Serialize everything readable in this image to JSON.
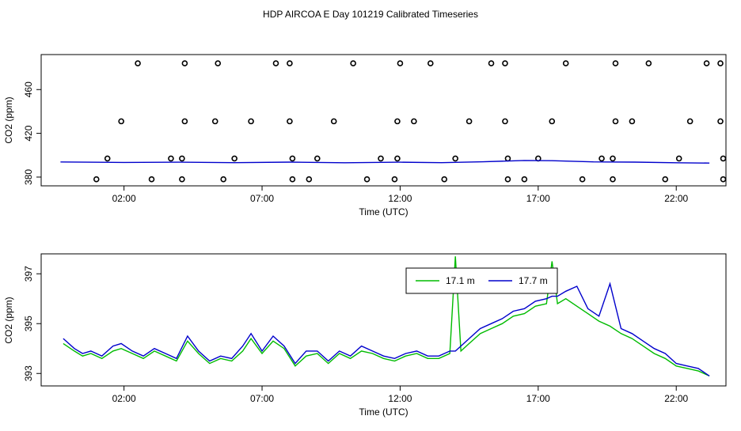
{
  "title": "HDP AIRCOA E  Day 101219  Calibrated Timeseries",
  "chart_data": [
    {
      "type": "scatter",
      "xlabel": "Time (UTC)",
      "ylabel": "CO2 (ppm)",
      "xlim": [
        -1.0,
        23.8
      ],
      "ylim": [
        372,
        492
      ],
      "xticks": [
        {
          "value": 2,
          "label": "02:00"
        },
        {
          "value": 7,
          "label": "07:00"
        },
        {
          "value": 12,
          "label": "12:00"
        },
        {
          "value": 17,
          "label": "17:00"
        },
        {
          "value": 22,
          "label": "22:00"
        }
      ],
      "yticks": [
        {
          "value": 380,
          "label": "380"
        },
        {
          "value": 420,
          "label": "420"
        },
        {
          "value": 460,
          "label": "460"
        }
      ],
      "grid": false,
      "series": [
        {
          "color": "#000000",
          "marker": "circle",
          "points": [
            [
              2.5,
              484
            ],
            [
              4.2,
              484
            ],
            [
              5.4,
              484
            ],
            [
              7.5,
              484
            ],
            [
              8.0,
              484
            ],
            [
              10.3,
              484
            ],
            [
              12.0,
              484
            ],
            [
              13.1,
              484
            ],
            [
              15.3,
              484
            ],
            [
              15.8,
              484
            ],
            [
              18.0,
              484
            ],
            [
              19.8,
              484
            ],
            [
              21.0,
              484
            ],
            [
              23.1,
              484
            ],
            [
              23.6,
              484
            ],
            [
              1.9,
              431
            ],
            [
              4.2,
              431
            ],
            [
              5.3,
              431
            ],
            [
              6.6,
              431
            ],
            [
              8.0,
              431
            ],
            [
              9.6,
              431
            ],
            [
              11.9,
              431
            ],
            [
              12.5,
              431
            ],
            [
              14.5,
              431
            ],
            [
              15.8,
              431
            ],
            [
              17.5,
              431
            ],
            [
              19.8,
              431
            ],
            [
              20.4,
              431
            ],
            [
              22.5,
              431
            ],
            [
              23.6,
              431
            ],
            [
              1.4,
              397
            ],
            [
              3.7,
              397
            ],
            [
              4.1,
              397
            ],
            [
              6.0,
              397
            ],
            [
              8.1,
              397
            ],
            [
              9.0,
              397
            ],
            [
              11.3,
              397
            ],
            [
              11.9,
              397
            ],
            [
              14.0,
              397
            ],
            [
              15.9,
              397
            ],
            [
              17.0,
              397
            ],
            [
              19.3,
              397
            ],
            [
              19.7,
              397
            ],
            [
              22.1,
              397
            ],
            [
              23.7,
              397
            ],
            [
              1.0,
              378
            ],
            [
              3.0,
              378
            ],
            [
              4.1,
              378
            ],
            [
              5.6,
              378
            ],
            [
              8.1,
              378
            ],
            [
              8.7,
              378
            ],
            [
              10.8,
              378
            ],
            [
              11.8,
              378
            ],
            [
              13.6,
              378
            ],
            [
              15.9,
              378
            ],
            [
              16.5,
              378
            ],
            [
              18.6,
              378
            ],
            [
              19.7,
              378
            ],
            [
              21.6,
              378
            ],
            [
              23.7,
              378
            ]
          ]
        },
        {
          "color": "#0000cc",
          "type": "line",
          "x": [
            -0.3,
            2,
            4,
            6,
            8,
            10,
            12,
            13.5,
            15,
            16.5,
            17.5,
            19,
            20.5,
            22,
            23.2
          ],
          "y": [
            393.8,
            393.4,
            393.6,
            393.2,
            393.7,
            393.1,
            393.6,
            393.2,
            394.0,
            395.2,
            395.0,
            393.9,
            393.7,
            393.1,
            392.8
          ]
        }
      ]
    },
    {
      "type": "line",
      "xlabel": "Time (UTC)",
      "ylabel": "CO2 (ppm)",
      "xlim": [
        -1.0,
        23.8
      ],
      "ylim": [
        392.5,
        397.8
      ],
      "xticks": [
        {
          "value": 2,
          "label": "02:00"
        },
        {
          "value": 7,
          "label": "07:00"
        },
        {
          "value": 12,
          "label": "12:00"
        },
        {
          "value": 17,
          "label": "17:00"
        },
        {
          "value": 22,
          "label": "22:00"
        }
      ],
      "yticks": [
        {
          "value": 393,
          "label": "393"
        },
        {
          "value": 395,
          "label": "395"
        },
        {
          "value": 397,
          "label": "397"
        }
      ],
      "grid": false,
      "legend_position": "top-center",
      "series": [
        {
          "name": "17.1 m",
          "color": "#00bb00",
          "x": [
            -0.2,
            0.2,
            0.5,
            0.8,
            1.2,
            1.6,
            1.9,
            2.3,
            2.7,
            3.1,
            3.5,
            3.9,
            4.3,
            4.7,
            5.1,
            5.5,
            5.9,
            6.3,
            6.6,
            7.0,
            7.4,
            7.8,
            8.2,
            8.6,
            9.0,
            9.4,
            9.8,
            10.2,
            10.6,
            11.0,
            11.4,
            11.8,
            12.2,
            12.6,
            13.0,
            13.4,
            13.8,
            14.0,
            14.2,
            14.5,
            14.9,
            15.3,
            15.7,
            16.1,
            16.5,
            16.9,
            17.3,
            17.5,
            17.7,
            18.0,
            18.4,
            18.8,
            19.2,
            19.6,
            20.0,
            20.4,
            20.8,
            21.2,
            21.6,
            22.0,
            22.4,
            22.8,
            23.2
          ],
          "y": [
            394.2,
            393.9,
            393.7,
            393.8,
            393.6,
            393.9,
            394.0,
            393.8,
            393.6,
            393.9,
            393.7,
            393.5,
            394.3,
            393.8,
            393.4,
            393.6,
            393.5,
            393.9,
            394.4,
            393.8,
            394.3,
            394.0,
            393.3,
            393.7,
            393.8,
            393.4,
            393.8,
            393.6,
            393.9,
            393.8,
            393.6,
            393.5,
            393.7,
            393.8,
            393.6,
            393.6,
            393.8,
            397.7,
            393.9,
            394.2,
            394.6,
            394.8,
            395.0,
            395.3,
            395.4,
            395.7,
            395.8,
            397.5,
            395.8,
            396.0,
            395.7,
            395.4,
            395.1,
            394.9,
            394.6,
            394.4,
            394.1,
            393.8,
            393.6,
            393.3,
            393.2,
            393.1,
            392.9
          ]
        },
        {
          "name": "17.7 m",
          "color": "#0000cc",
          "x": [
            -0.2,
            0.2,
            0.5,
            0.8,
            1.2,
            1.6,
            1.9,
            2.3,
            2.7,
            3.1,
            3.5,
            3.9,
            4.3,
            4.7,
            5.1,
            5.5,
            5.9,
            6.3,
            6.6,
            7.0,
            7.4,
            7.8,
            8.2,
            8.6,
            9.0,
            9.4,
            9.8,
            10.2,
            10.6,
            11.0,
            11.4,
            11.8,
            12.2,
            12.6,
            13.0,
            13.4,
            13.8,
            14.0,
            14.2,
            14.5,
            14.9,
            15.3,
            15.7,
            16.1,
            16.5,
            16.9,
            17.3,
            17.5,
            17.7,
            18.0,
            18.4,
            18.8,
            19.2,
            19.6,
            20.0,
            20.4,
            20.8,
            21.2,
            21.6,
            22.0,
            22.4,
            22.8,
            23.2
          ],
          "y": [
            394.4,
            394.0,
            393.8,
            393.9,
            393.7,
            394.1,
            394.2,
            393.9,
            393.7,
            394.0,
            393.8,
            393.6,
            394.5,
            393.9,
            393.5,
            393.7,
            393.6,
            394.1,
            394.6,
            393.9,
            394.5,
            394.1,
            393.4,
            393.9,
            393.9,
            393.5,
            393.9,
            393.7,
            394.1,
            393.9,
            393.7,
            393.6,
            393.8,
            393.9,
            393.7,
            393.7,
            393.9,
            393.9,
            394.1,
            394.4,
            394.8,
            395.0,
            395.2,
            395.5,
            395.6,
            395.9,
            396.0,
            396.1,
            396.1,
            396.3,
            396.5,
            395.6,
            395.3,
            396.6,
            394.8,
            394.6,
            394.3,
            394.0,
            393.8,
            393.4,
            393.3,
            393.2,
            392.9
          ]
        }
      ]
    }
  ]
}
